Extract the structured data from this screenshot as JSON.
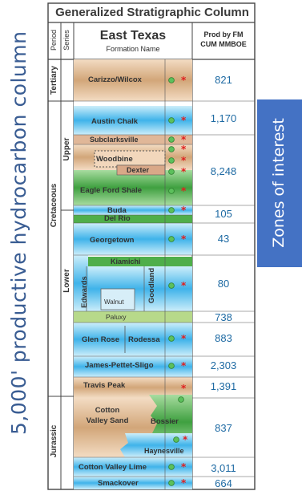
{
  "header": {
    "title": "Generalized Stratigraphic Column",
    "period_label": "Period",
    "series_label": "Series",
    "region": "East Texas",
    "formation_label": "Formation Name",
    "prod_label_1": "Prod by FM",
    "prod_label_2": "CUM MMBOE"
  },
  "side_title": "5,000' productive hydrocarbon column",
  "zones_label": "Zones of interest",
  "periods": {
    "tertiary": "Tertiary",
    "cretaceous": "Cretaceous",
    "jurassic": "Jurassic"
  },
  "series": {
    "upper": "Upper",
    "lower": "Lower"
  },
  "formations": {
    "carizzo": "Carizzo/Wilcox",
    "austin": "Austin Chalk",
    "subclarksville": "Subclarksville",
    "woodbine": "Woodbine",
    "dexter": "Dexter",
    "eagleford": "Eagle Ford Shale",
    "buda": "Buda",
    "delrio": "Del Rio",
    "georgetown": "Georgetown",
    "kiamichi": "Kiamichi",
    "edwards": "Edwards",
    "goodland": "Goodland",
    "walnut": "Walnut",
    "paluxy": "Paluxy",
    "glenrose": "Glen Rose",
    "rodessa": "Rodessa",
    "jps": "James-Pettet-Sligo",
    "travispeak": "Travis Peak",
    "cvsand": "Cotton Valley Sand",
    "bossier": "Bossier",
    "haynesville": "Haynesville",
    "cvlime": "Cotton Valley Lime",
    "smackover": "Smackover"
  },
  "production": {
    "carizzo": "821",
    "austin": "1,170",
    "woodbine": "8,248",
    "buda": "105",
    "georgetown": "43",
    "edwards": "80",
    "paluxy": "738",
    "glenrose": "883",
    "jps": "2,303",
    "travispeak": "1,391",
    "cotton": "837",
    "cvlime": "3,011",
    "smackover": "664"
  },
  "colors": {
    "tan": "#d7b38e",
    "blue": "#33aee8",
    "green": "#50b04b",
    "accent": "#4472c4",
    "oil_symbol": "#5cc05c",
    "gas_symbol": "#e02020"
  }
}
